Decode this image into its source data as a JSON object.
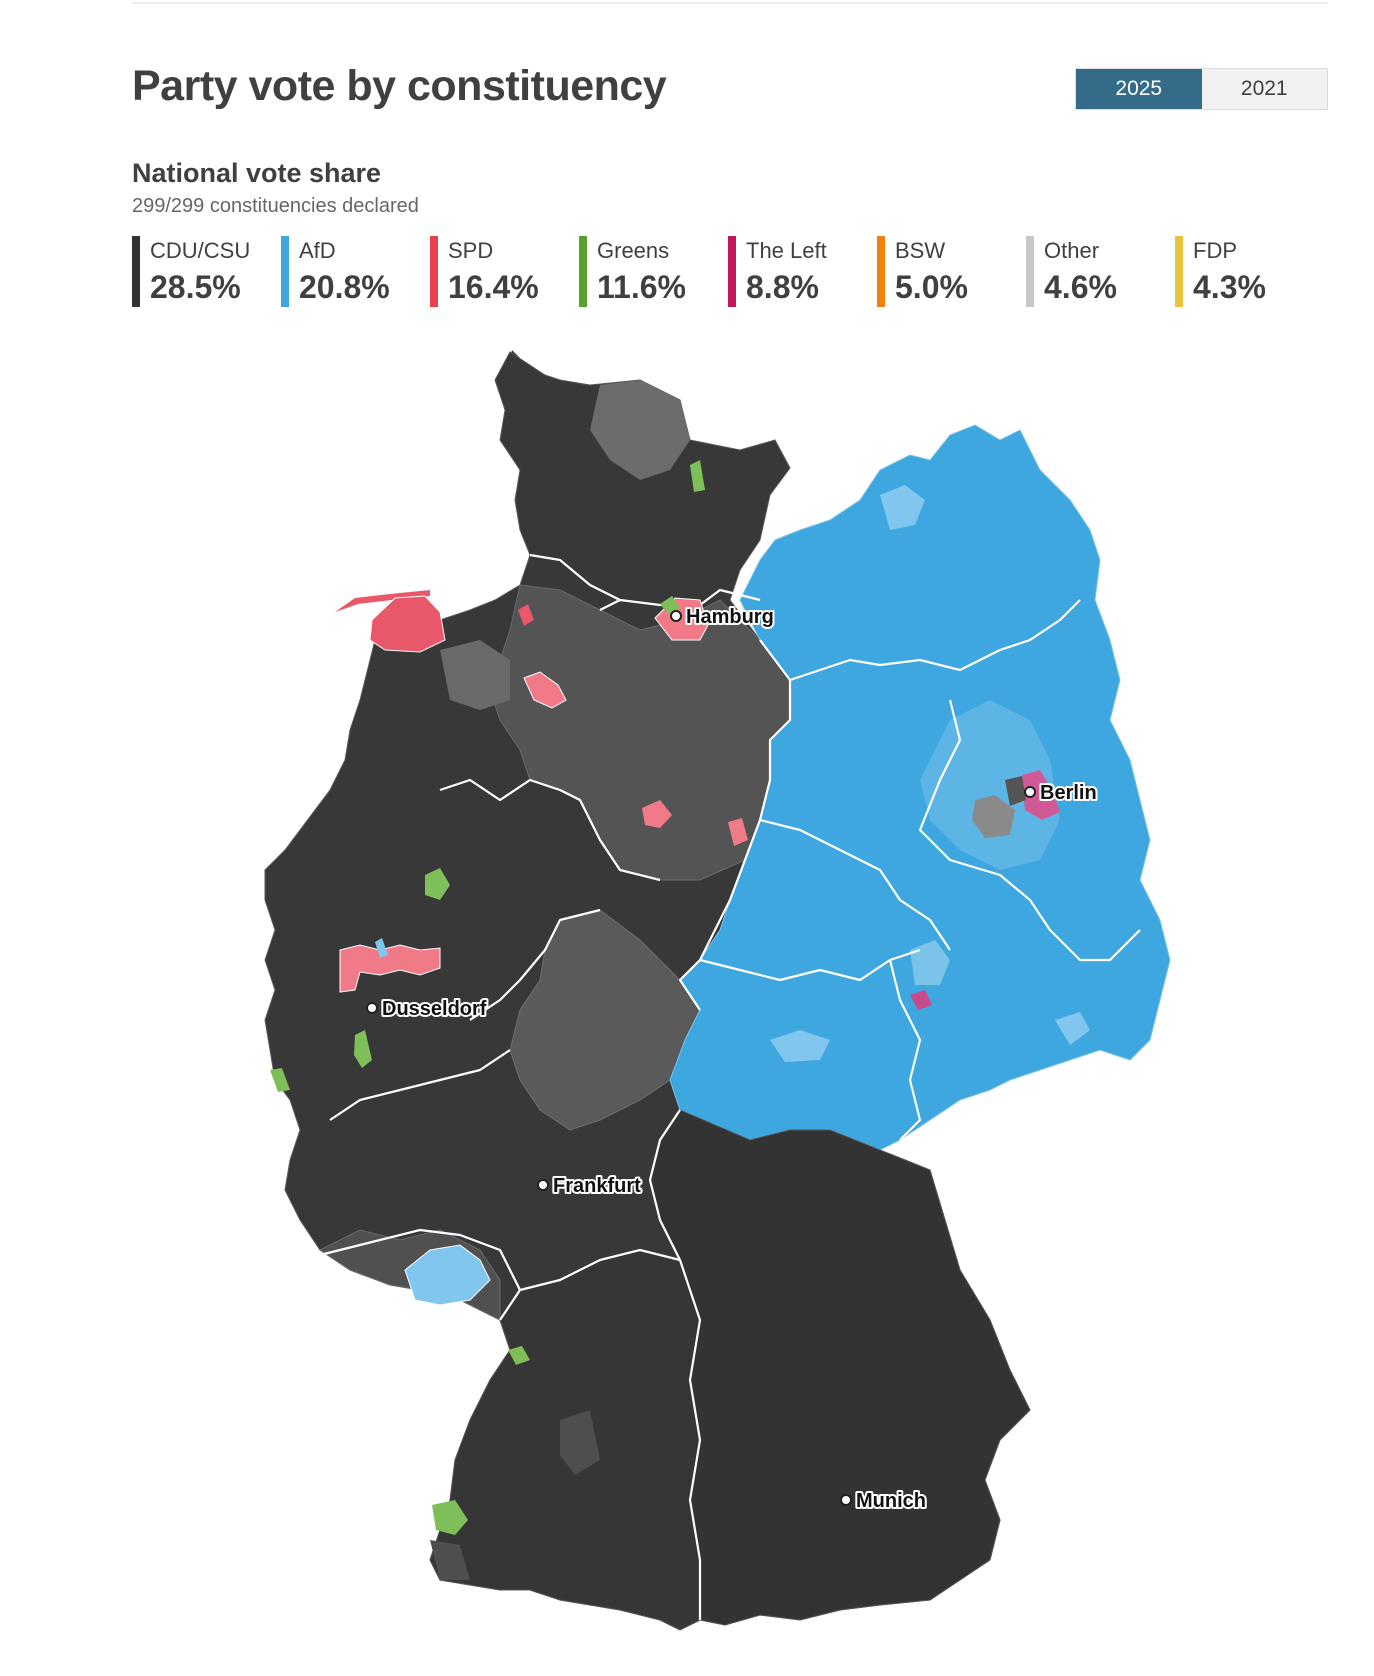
{
  "title": "Party vote by constituency",
  "year_toggle": {
    "options": [
      "2025",
      "2021"
    ],
    "selected": "2025",
    "active_color": "#346b88"
  },
  "national": {
    "heading": "National vote share",
    "declared": "299/299 constituencies declared"
  },
  "parties": [
    {
      "name": "CDU/CSU",
      "share": "28.5%",
      "color": "#333333"
    },
    {
      "name": "AfD",
      "share": "20.8%",
      "color": "#3ea7e0"
    },
    {
      "name": "SPD",
      "share": "16.4%",
      "color": "#e9404f"
    },
    {
      "name": "Greens",
      "share": "11.6%",
      "color": "#5aa02c"
    },
    {
      "name": "The Left",
      "share": "8.8%",
      "color": "#c2185b"
    },
    {
      "name": "BSW",
      "share": "5.0%",
      "color": "#f4800e"
    },
    {
      "name": "Other",
      "share": "4.6%",
      "color": "#c8c8c8"
    },
    {
      "name": "FDP",
      "share": "4.3%",
      "color": "#e8c33c"
    }
  ],
  "cities": [
    "Hamburg",
    "Berlin",
    "Dusseldorf",
    "Frankfurt",
    "Munich"
  ]
}
